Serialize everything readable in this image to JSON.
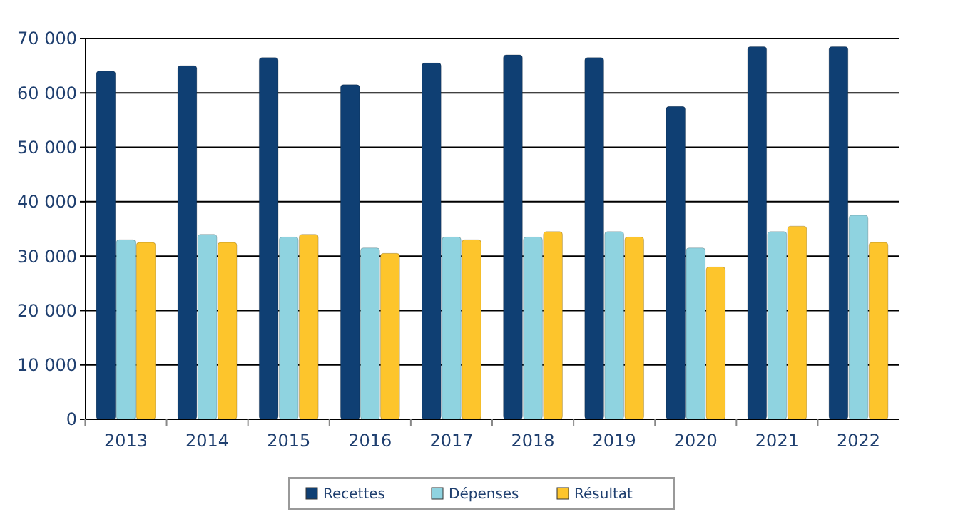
{
  "chart_data": {
    "type": "bar",
    "categories": [
      "2013",
      "2014",
      "2015",
      "2016",
      "2017",
      "2018",
      "2019",
      "2020",
      "2021",
      "2022"
    ],
    "series": [
      {
        "name": "Recettes",
        "color": "#0f3f73",
        "values": [
          64000,
          65000,
          66500,
          61500,
          65500,
          67000,
          66500,
          57500,
          68500,
          68500
        ]
      },
      {
        "name": "Dépenses",
        "color": "#8fd3e0",
        "values": [
          33000,
          34000,
          33500,
          31500,
          33500,
          33500,
          34500,
          31500,
          34500,
          37500
        ]
      },
      {
        "name": "Résultat",
        "color": "#fdc52c",
        "values": [
          32500,
          32500,
          34000,
          30500,
          33000,
          34500,
          33500,
          28000,
          35500,
          32500
        ]
      }
    ],
    "ylim": [
      0,
      70000
    ],
    "yticks": [
      {
        "value": 0,
        "label": "0"
      },
      {
        "value": 10000,
        "label": "10 000"
      },
      {
        "value": 20000,
        "label": "20 000"
      },
      {
        "value": 30000,
        "label": "30 000"
      },
      {
        "value": 40000,
        "label": "40 000"
      },
      {
        "value": 50000,
        "label": "50 000"
      },
      {
        "value": 60000,
        "label": "60 000"
      },
      {
        "value": 70000,
        "label": "70 000"
      }
    ],
    "grid": "y",
    "legend": "bottom"
  }
}
